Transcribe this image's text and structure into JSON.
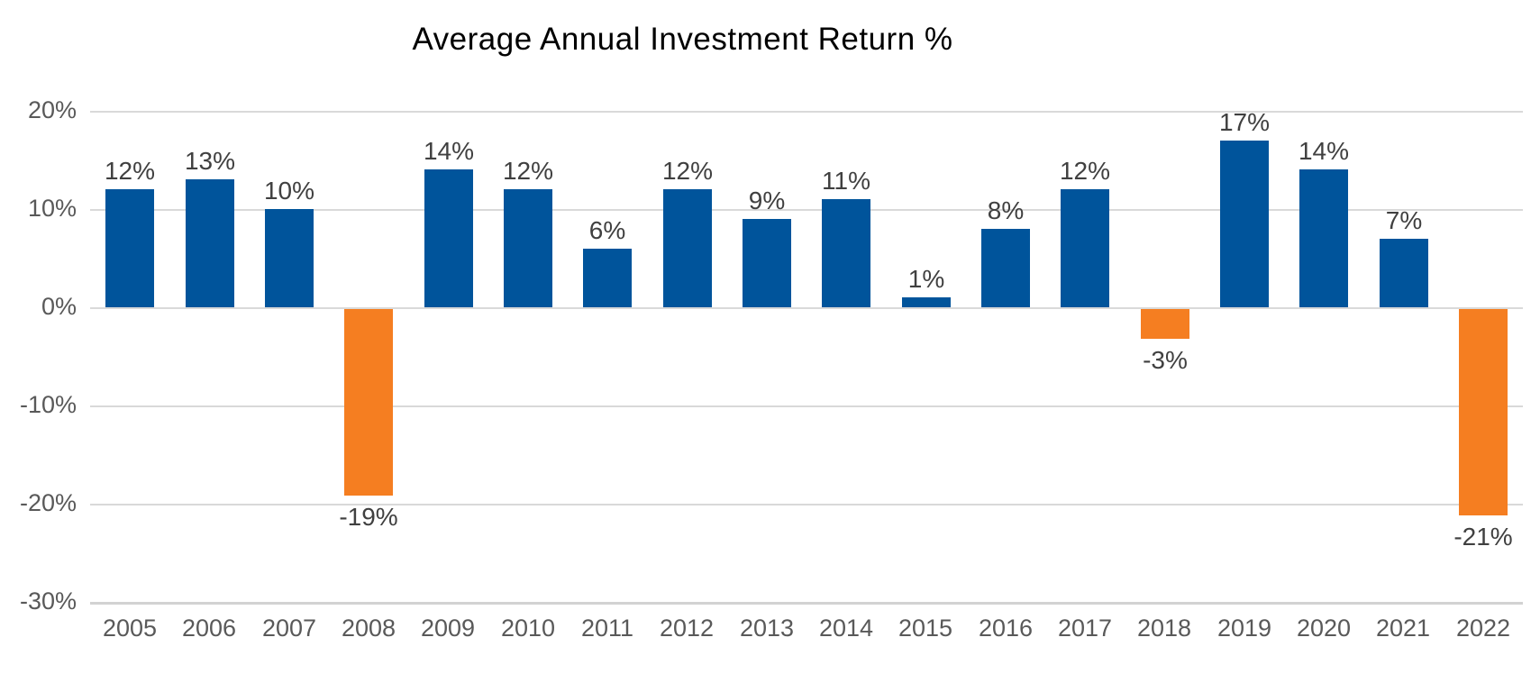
{
  "title": "Average Annual Investment Return %",
  "colors": {
    "background": "#ffffff",
    "positive_bar": "#00549B",
    "negative_bar": "#F57E21",
    "gridline": "#D9D9D9",
    "axis_line": "#D2D2D2",
    "axis_text": "#595959",
    "data_label_text": "#404040",
    "title_text": "#000000"
  },
  "chart_data": {
    "type": "bar",
    "title": "Average Annual Investment Return %",
    "categories": [
      "2005",
      "2006",
      "2007",
      "2008",
      "2009",
      "2010",
      "2011",
      "2012",
      "2013",
      "2014",
      "2015",
      "2016",
      "2017",
      "2018",
      "2019",
      "2020",
      "2021",
      "2022"
    ],
    "values": [
      12,
      13,
      10,
      -19,
      14,
      12,
      6,
      12,
      9,
      11,
      1,
      8,
      12,
      -3,
      17,
      14,
      7,
      -21
    ],
    "data_labels": [
      "12%",
      "13%",
      "10%",
      "-19%",
      "14%",
      "12%",
      "6%",
      "12%",
      "9%",
      "11%",
      "1%",
      "8%",
      "12%",
      "-3%",
      "17%",
      "14%",
      "7%",
      "-21%"
    ],
    "xlabel": "",
    "ylabel": "",
    "y_ticks": [
      {
        "value": 20,
        "label": "20%"
      },
      {
        "value": 10,
        "label": "10%"
      },
      {
        "value": 0,
        "label": "0%"
      },
      {
        "value": -10,
        "label": "-10%"
      },
      {
        "value": -20,
        "label": "-20%"
      },
      {
        "value": -30,
        "label": "-30%"
      }
    ],
    "ylim": [
      -30,
      20
    ],
    "grid": true,
    "legend": "none",
    "positive_color": "#00549B",
    "negative_color": "#F57E21"
  }
}
